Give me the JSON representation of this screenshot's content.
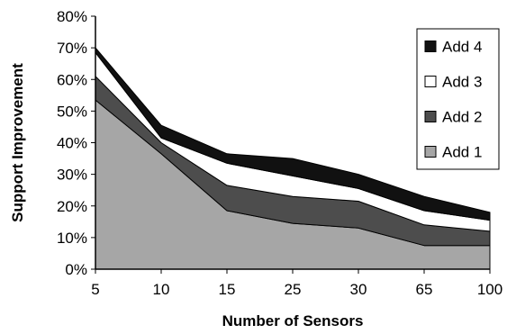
{
  "chart_data": {
    "type": "area",
    "stacked": true,
    "title": "",
    "xlabel": "Number of Sensors",
    "ylabel": "Support Improvement",
    "categories": [
      "5",
      "10",
      "15",
      "25",
      "30",
      "65",
      "100"
    ],
    "y_ticks": [
      "0%",
      "10%",
      "20%",
      "30%",
      "40%",
      "50%",
      "60%",
      "70%",
      "80%"
    ],
    "ylim": [
      0,
      80
    ],
    "y_unit": "%",
    "grid": false,
    "legend_position": "right",
    "series": [
      {
        "name": "Add 1",
        "color": "#a6a6a6",
        "values": [
          53.5,
          36.5,
          18.5,
          14.5,
          13,
          7.5,
          7.5
        ]
      },
      {
        "name": "Add 2",
        "color": "#4d4d4d",
        "values": [
          7.5,
          3.5,
          8,
          8.5,
          8.5,
          6.5,
          4.5
        ]
      },
      {
        "name": "Add 3",
        "color": "#ffffff",
        "values": [
          7.5,
          1.5,
          7,
          6.5,
          4,
          4.5,
          3.5
        ]
      },
      {
        "name": "Add 4",
        "color": "#111111",
        "values": [
          1.5,
          4,
          3,
          5.5,
          4.5,
          4.5,
          2.5
        ]
      }
    ]
  }
}
